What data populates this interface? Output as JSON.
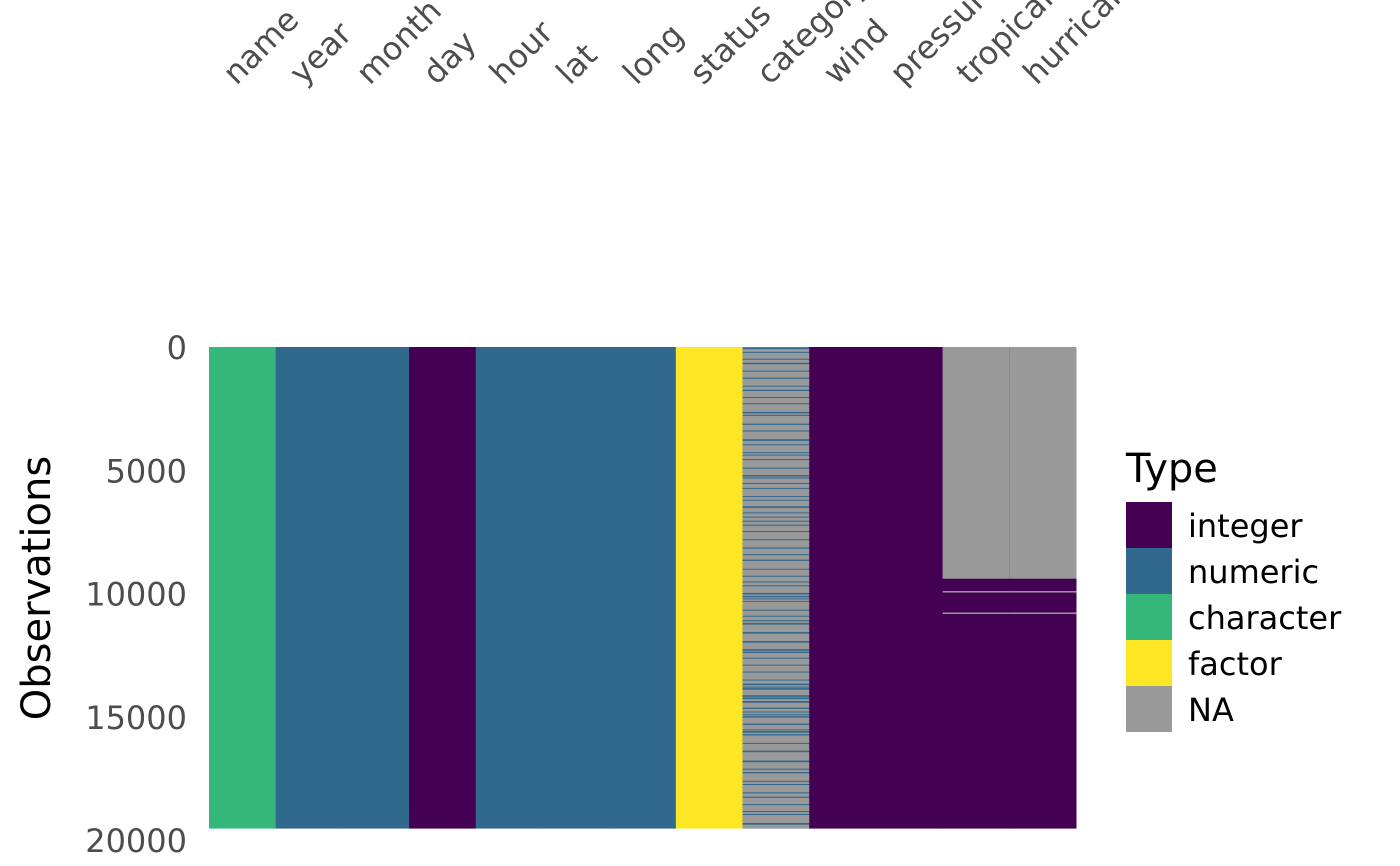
{
  "chart_data": {
    "type": "heatmap",
    "title": "",
    "xlabel": "",
    "ylabel": "Observations",
    "n_rows": 19537,
    "ylim": [
      0,
      20000
    ],
    "y_ticks": [
      "0",
      "5000",
      "10000",
      "15000",
      "20000"
    ],
    "y_tick_values": [
      0,
      5000,
      10000,
      15000,
      20000
    ],
    "columns": [
      {
        "name": "name",
        "type": "character"
      },
      {
        "name": "year",
        "type": "numeric"
      },
      {
        "name": "month",
        "type": "numeric"
      },
      {
        "name": "day",
        "type": "integer"
      },
      {
        "name": "hour",
        "type": "numeric"
      },
      {
        "name": "lat",
        "type": "numeric"
      },
      {
        "name": "long",
        "type": "numeric"
      },
      {
        "name": "status",
        "type": "factor"
      },
      {
        "name": "category",
        "type": "numeric",
        "mostly_na": true,
        "na_fraction": 0.75
      },
      {
        "name": "wind",
        "type": "integer"
      },
      {
        "name": "pressure",
        "type": "integer"
      },
      {
        "name": "tropicalstorm_force_diameter",
        "type": "integer",
        "na_rows": [
          [
            0,
            9400
          ],
          [
            9900,
            9960
          ],
          [
            10770,
            10830
          ]
        ]
      },
      {
        "name": "hurricane_force_diameter",
        "type": "integer",
        "na_rows": [
          [
            0,
            9400
          ],
          [
            9900,
            9960
          ],
          [
            10770,
            10830
          ]
        ]
      }
    ],
    "legend": {
      "title": "Type",
      "position": "right",
      "entries": [
        {
          "label": "integer",
          "color": "#440154"
        },
        {
          "label": "numeric",
          "color": "#31688E"
        },
        {
          "label": "character",
          "color": "#35B779"
        },
        {
          "label": "factor",
          "color": "#FDE725"
        },
        {
          "label": "NA",
          "color": "#999999"
        }
      ]
    }
  }
}
